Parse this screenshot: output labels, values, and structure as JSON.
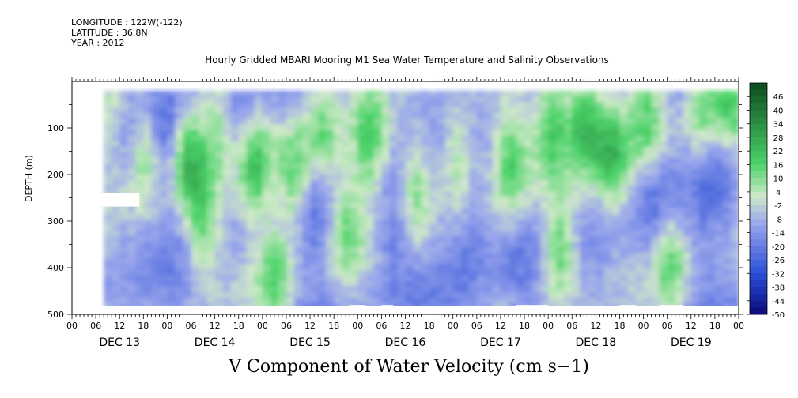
{
  "header": {
    "longitude": "LONGITUDE : 122W(-122)",
    "latitude": "LATITUDE : 36.8N",
    "year": "YEAR : 2012",
    "title": "Hourly Gridded MBARI Mooring M1 Sea Water Temperature and Salinity Observations"
  },
  "colors": {
    "strong_negative": "#0a0a7a",
    "negative": "#2b4fd8",
    "light_negative": "#9aa6ec",
    "near_zero": "#cfe9c8",
    "positive": "#4cd46a",
    "strong_positive": "#0b4a1d",
    "blank": "#ffffff"
  },
  "chart_data": {
    "type": "heatmap",
    "title": "Hourly Gridded MBARI Mooring M1 Sea Water Temperature and Salinity Observations",
    "xlabel": "V Component of Water Velocity (cm s−1)",
    "ylabel": "DEPTH (m)",
    "x_range": [
      "2012-12-13 00:00",
      "2012-12-20 00:00"
    ],
    "x_hour_ticks": [
      "00",
      "06",
      "12",
      "18",
      "00",
      "06",
      "12",
      "18",
      "00",
      "06",
      "12",
      "18",
      "00",
      "06",
      "12",
      "18",
      "00",
      "06",
      "12",
      "18",
      "00",
      "06",
      "12",
      "18",
      "00",
      "06",
      "12",
      "18",
      "00"
    ],
    "x_day_labels": [
      "DEC 13",
      "DEC 14",
      "DEC 15",
      "DEC 16",
      "DEC 17",
      "DEC 18",
      "DEC 19"
    ],
    "y_range": [
      0,
      500
    ],
    "y_inverted": true,
    "y_ticks": [
      "100",
      "200",
      "300",
      "400",
      "500"
    ],
    "colorbar": {
      "labels": [
        "46",
        "40",
        "34",
        "28",
        "22",
        "16",
        "10",
        "4",
        "-2",
        "-8",
        "-14",
        "-20",
        "-26",
        "-32",
        "-38",
        "-44",
        "-50"
      ],
      "range": [
        -50,
        52
      ],
      "step": 3
    },
    "data_coverage": {
      "start": "2012-12-13 08:00",
      "end": "2012-12-19 23:00",
      "depth_top": 20,
      "depth_bottom": 485
    },
    "positive_features": [
      {
        "t": 10,
        "d": 80,
        "v": 10
      },
      {
        "t": 18,
        "d": 150,
        "v": 14
      },
      {
        "t": 28,
        "d": 150,
        "v": 22
      },
      {
        "t": 32,
        "d": 300,
        "v": 14
      },
      {
        "t": 36,
        "d": 80,
        "v": 10
      },
      {
        "t": 45,
        "d": 180,
        "v": 16
      },
      {
        "t": 50,
        "d": 420,
        "v": 14
      },
      {
        "t": 55,
        "d": 200,
        "v": 18
      },
      {
        "t": 62,
        "d": 100,
        "v": 12
      },
      {
        "t": 68,
        "d": 300,
        "v": 10
      },
      {
        "t": 74,
        "d": 120,
        "v": 14
      },
      {
        "t": 86,
        "d": 220,
        "v": 12
      },
      {
        "t": 96,
        "d": 160,
        "v": 10
      },
      {
        "t": 110,
        "d": 150,
        "v": 14
      },
      {
        "t": 120,
        "d": 90,
        "v": 22
      },
      {
        "t": 122,
        "d": 350,
        "v": 20
      },
      {
        "t": 128,
        "d": 80,
        "v": 24
      },
      {
        "t": 135,
        "d": 150,
        "v": 18
      },
      {
        "t": 144,
        "d": 80,
        "v": 12
      },
      {
        "t": 150,
        "d": 400,
        "v": 12
      },
      {
        "t": 158,
        "d": 60,
        "v": 18
      },
      {
        "t": 165,
        "d": 40,
        "v": 14
      }
    ],
    "negative_features": [
      {
        "t": 12,
        "d": 90,
        "v": -30
      },
      {
        "t": 22,
        "d": 120,
        "v": -28
      },
      {
        "t": 40,
        "d": 80,
        "v": -26
      },
      {
        "t": 60,
        "d": 260,
        "v": -22
      },
      {
        "t": 80,
        "d": 330,
        "v": -24
      },
      {
        "t": 100,
        "d": 300,
        "v": -20
      },
      {
        "t": 112,
        "d": 380,
        "v": -20
      },
      {
        "t": 145,
        "d": 230,
        "v": -24
      },
      {
        "t": 160,
        "d": 150,
        "v": -26
      }
    ]
  }
}
